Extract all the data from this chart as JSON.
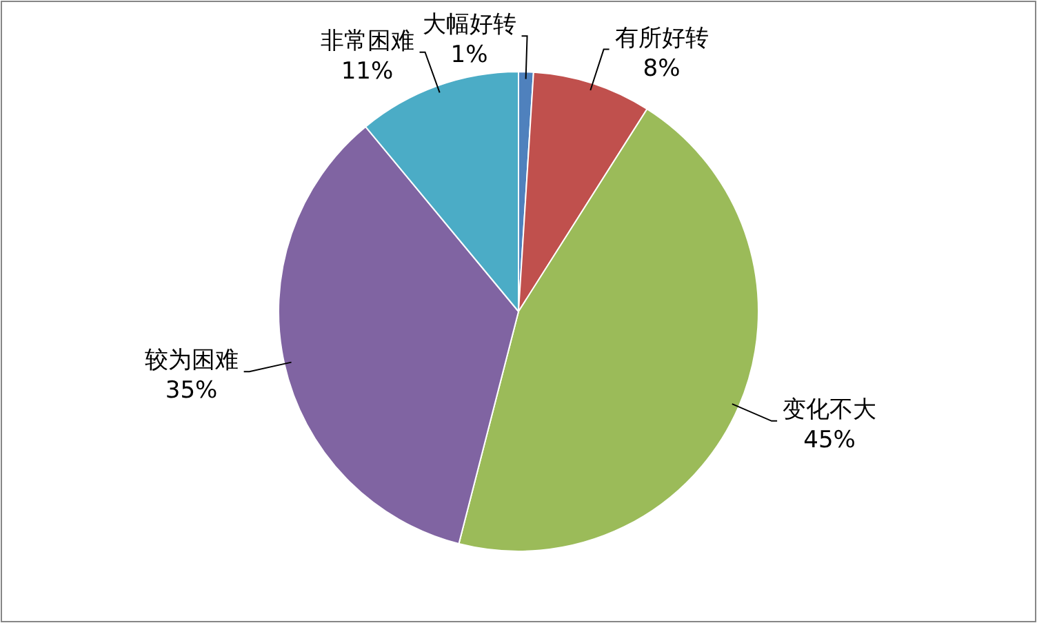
{
  "chart_data": {
    "type": "pie",
    "categories": [
      "大幅好转",
      "有所好转",
      "变化不大",
      "较为困难",
      "非常困难"
    ],
    "values": [
      1,
      8,
      45,
      35,
      11
    ],
    "colors": [
      "#4f81bd",
      "#c0504d",
      "#9bbb59",
      "#8064a2",
      "#4bacc6"
    ],
    "value_labels": [
      "1%",
      "8%",
      "45%",
      "35%",
      "11%"
    ],
    "legend": false
  }
}
